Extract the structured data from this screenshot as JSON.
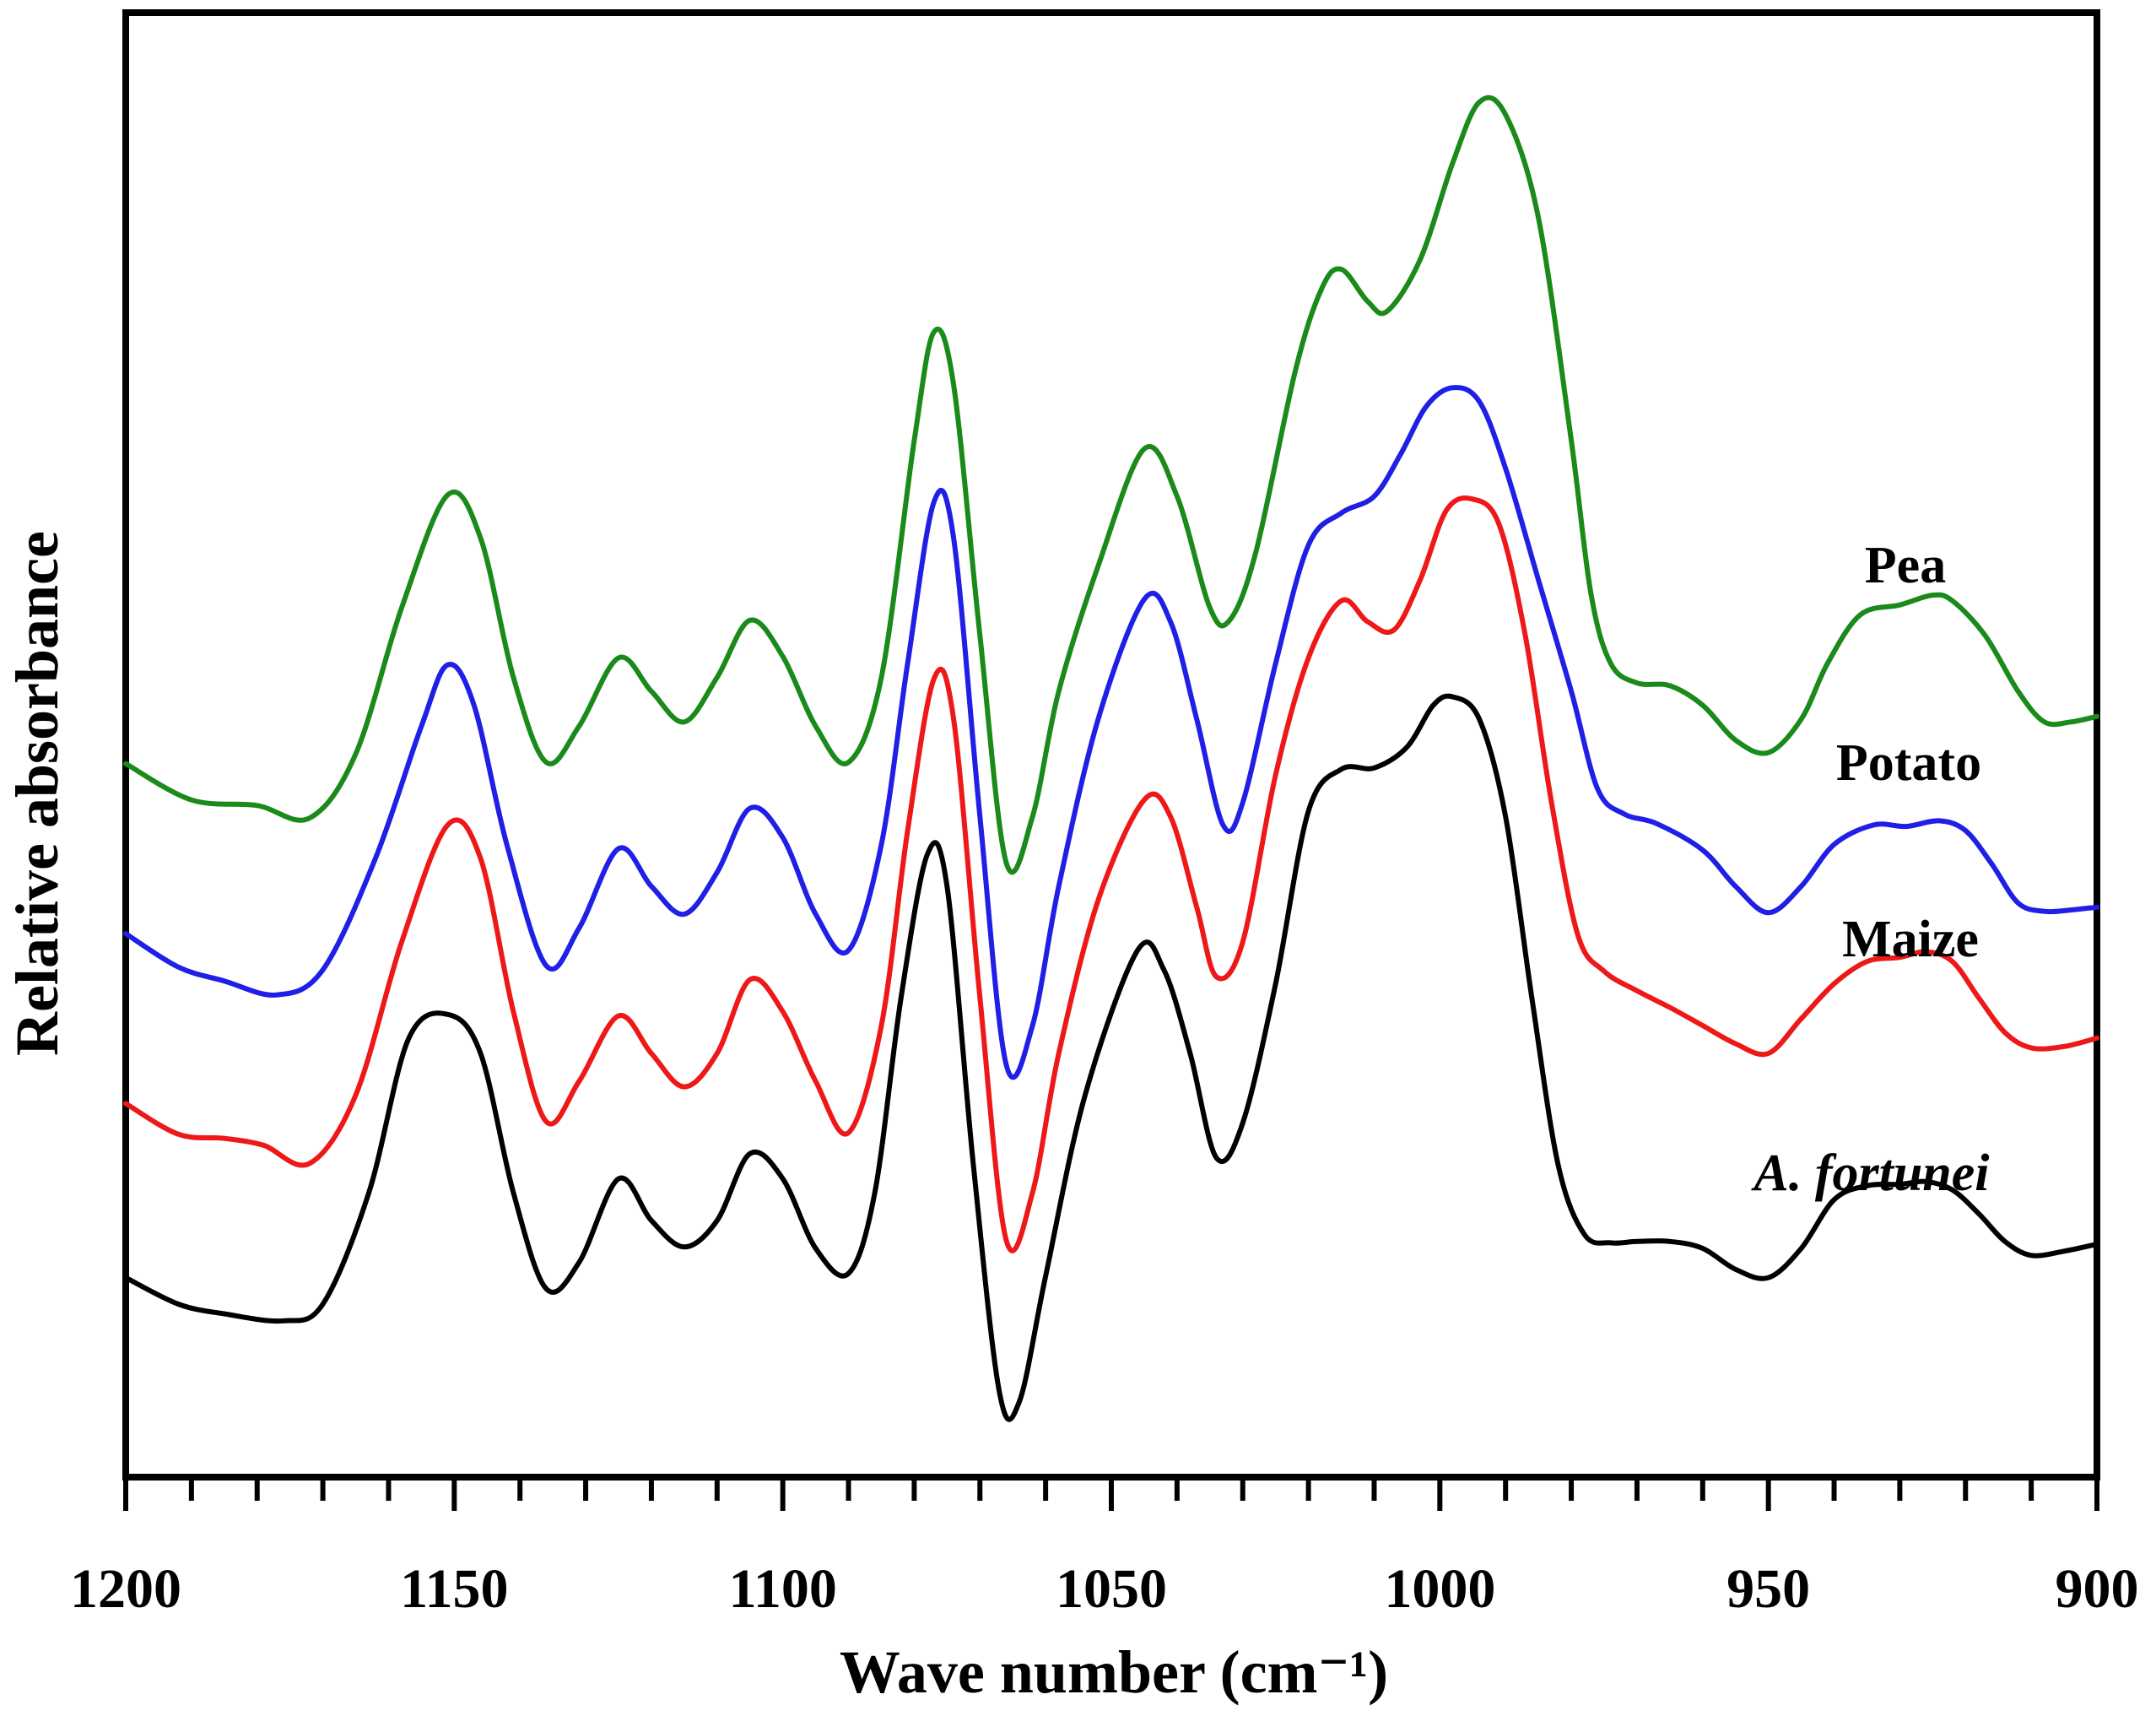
{
  "chart_data": {
    "type": "line",
    "title": "",
    "xlabel": "Wave number (cm⁻¹)",
    "ylabel": "Relative absorbance",
    "xlim": [
      1200,
      900
    ],
    "x_reversed": true,
    "ylim": [
      0,
      100
    ],
    "y_ticks_shown": false,
    "x_ticks": [
      1200,
      1150,
      1100,
      1050,
      1000,
      950,
      900
    ],
    "x_tick_labels": [
      "1200",
      "1150",
      "1100",
      "1050",
      "1000",
      "950",
      "900"
    ],
    "x_minor_step": 10,
    "grid": false,
    "series": [
      {
        "name": "Pea",
        "color": "#1a8a1a",
        "points": [
          [
            1200,
            48.8
          ],
          [
            1190,
            46.2
          ],
          [
            1180,
            45.8
          ],
          [
            1172,
            44.9
          ],
          [
            1165,
            49.5
          ],
          [
            1158,
            60
          ],
          [
            1151,
            68.1
          ],
          [
            1146,
            65
          ],
          [
            1141,
            55
          ],
          [
            1136,
            48.9
          ],
          [
            1131,
            51.5
          ],
          [
            1125,
            56.4
          ],
          [
            1120,
            54
          ],
          [
            1115,
            51.8
          ],
          [
            1110,
            55
          ],
          [
            1105,
            59.1
          ],
          [
            1100,
            56.5
          ],
          [
            1095,
            51.5
          ],
          [
            1090,
            48.9
          ],
          [
            1085,
            55
          ],
          [
            1080,
            72
          ],
          [
            1077,
            79.8
          ],
          [
            1074,
            76
          ],
          [
            1070,
            58
          ],
          [
            1066,
            41.7
          ],
          [
            1062,
            45
          ],
          [
            1058,
            54
          ],
          [
            1052,
            63
          ],
          [
            1045,
            71.4
          ],
          [
            1040,
            68
          ],
          [
            1035,
            60
          ],
          [
            1032,
            59.1
          ],
          [
            1028,
            64
          ],
          [
            1022,
            77
          ],
          [
            1018,
            82.9
          ],
          [
            1015,
            84.3
          ],
          [
            1011,
            82
          ],
          [
            1008,
            81.3
          ],
          [
            1003,
            85
          ],
          [
            998,
            92
          ],
          [
            994,
            96.3
          ],
          [
            990,
            95.4
          ],
          [
            985,
            88
          ],
          [
            980,
            72
          ],
          [
            977,
            61
          ],
          [
            974,
            56
          ],
          [
            970,
            54.6
          ],
          [
            965,
            54.4
          ],
          [
            960,
            53
          ],
          [
            955,
            50.5
          ],
          [
            950,
            49.6
          ],
          [
            945,
            52
          ],
          [
            941,
            56
          ],
          [
            936,
            59.5
          ],
          [
            930,
            60.2
          ],
          [
            925,
            60.9
          ],
          [
            922,
            60.5
          ],
          [
            917,
            58
          ],
          [
            912,
            54
          ],
          [
            908,
            51.8
          ],
          [
            904,
            51.8
          ],
          [
            900,
            52.2
          ]
        ]
      },
      {
        "name": "Potato",
        "color": "#1f1fe6",
        "points": [
          [
            1200,
            36.6
          ],
          [
            1192,
            34.2
          ],
          [
            1185,
            33.2
          ],
          [
            1177,
            32.2
          ],
          [
            1170,
            34
          ],
          [
            1162,
            42
          ],
          [
            1155,
            51.5
          ],
          [
            1151,
            55.9
          ],
          [
            1147,
            53
          ],
          [
            1142,
            43
          ],
          [
            1136,
            34.3
          ],
          [
            1131,
            37
          ],
          [
            1125,
            42.7
          ],
          [
            1120,
            40
          ],
          [
            1115,
            38
          ],
          [
            1110,
            41
          ],
          [
            1105,
            45.6
          ],
          [
            1100,
            43.5
          ],
          [
            1095,
            38
          ],
          [
            1090,
            35.4
          ],
          [
            1085,
            43
          ],
          [
            1081,
            56
          ],
          [
            1077,
            67.6
          ],
          [
            1074,
            65
          ],
          [
            1070,
            45
          ],
          [
            1066,
            27.2
          ],
          [
            1062,
            30
          ],
          [
            1058,
            40
          ],
          [
            1052,
            52
          ],
          [
            1045,
            60.6
          ],
          [
            1041,
            59
          ],
          [
            1037,
            52
          ],
          [
            1033,
            44.4
          ],
          [
            1030,
            46
          ],
          [
            1025,
            56
          ],
          [
            1020,
            64.5
          ],
          [
            1015,
            66.8
          ],
          [
            1010,
            68
          ],
          [
            1006,
            71
          ],
          [
            1002,
            74.5
          ],
          [
            998,
            75.8
          ],
          [
            994,
            74.8
          ],
          [
            990,
            70
          ],
          [
            985,
            62
          ],
          [
            980,
            54
          ],
          [
            976,
            47
          ],
          [
            972,
            45.2
          ],
          [
            967,
            44.5
          ],
          [
            960,
            42.6
          ],
          [
            955,
            40
          ],
          [
            950,
            38.1
          ],
          [
            945,
            40
          ],
          [
            940,
            43
          ],
          [
            934,
            44.4
          ],
          [
            929,
            44.3
          ],
          [
            924,
            44.7
          ],
          [
            920,
            44
          ],
          [
            916,
            41.6
          ],
          [
            912,
            38.8
          ],
          [
            908,
            38.2
          ],
          [
            904,
            38.3
          ],
          [
            900,
            38.5
          ]
        ]
      },
      {
        "name": "Maize",
        "color": "#ee1818",
        "points": [
          [
            1200,
            24.4
          ],
          [
            1192,
            22.2
          ],
          [
            1185,
            21.9
          ],
          [
            1179,
            21.4
          ],
          [
            1172,
            20.1
          ],
          [
            1165,
            25
          ],
          [
            1158,
            36
          ],
          [
            1151,
            44.4
          ],
          [
            1146,
            42
          ],
          [
            1141,
            31
          ],
          [
            1136,
            23.1
          ],
          [
            1131,
            26
          ],
          [
            1125,
            30.7
          ],
          [
            1120,
            28
          ],
          [
            1115,
            25.6
          ],
          [
            1110,
            28
          ],
          [
            1105,
            33.3
          ],
          [
            1100,
            31
          ],
          [
            1095,
            26
          ],
          [
            1090,
            22.3
          ],
          [
            1085,
            30
          ],
          [
            1081,
            44
          ],
          [
            1077,
            54.9
          ],
          [
            1074,
            52
          ],
          [
            1070,
            32
          ],
          [
            1066,
            14.6
          ],
          [
            1062,
            18
          ],
          [
            1058,
            28
          ],
          [
            1052,
            39
          ],
          [
            1045,
            46.2
          ],
          [
            1041,
            45
          ],
          [
            1037,
            38.5
          ],
          [
            1034,
            33.5
          ],
          [
            1030,
            36
          ],
          [
            1025,
            48
          ],
          [
            1020,
            56.4
          ],
          [
            1015,
            60.5
          ],
          [
            1011,
            59
          ],
          [
            1007,
            58.4
          ],
          [
            1003,
            62
          ],
          [
            999,
            67
          ],
          [
            995,
            67.8
          ],
          [
            991,
            66
          ],
          [
            987,
            58
          ],
          [
            983,
            46
          ],
          [
            979,
            36.5
          ],
          [
            975,
            33.9
          ],
          [
            970,
            32.5
          ],
          [
            965,
            31.3
          ],
          [
            960,
            30
          ],
          [
            955,
            28.7
          ],
          [
            950,
            28
          ],
          [
            945,
            30.5
          ],
          [
            940,
            33
          ],
          [
            935,
            34.6
          ],
          [
            930,
            34.9
          ],
          [
            926,
            35.3
          ],
          [
            922,
            34.6
          ],
          [
            918,
            32
          ],
          [
            914,
            29.5
          ],
          [
            910,
            28.4
          ],
          [
            905,
            28.5
          ],
          [
            900,
            29.1
          ]
        ]
      },
      {
        "name": "A. fortunei",
        "color": "#000000",
        "points": [
          [
            1200,
            11.9
          ],
          [
            1192,
            10
          ],
          [
            1185,
            9.3
          ],
          [
            1176,
            8.8
          ],
          [
            1170,
            10
          ],
          [
            1163,
            18
          ],
          [
            1157,
            29
          ],
          [
            1151,
            30.8
          ],
          [
            1146,
            28
          ],
          [
            1141,
            18
          ],
          [
            1136,
            11.1
          ],
          [
            1131,
            13
          ],
          [
            1125,
            19
          ],
          [
            1120,
            16
          ],
          [
            1115,
            14.1
          ],
          [
            1110,
            16
          ],
          [
            1105,
            20.8
          ],
          [
            1100,
            19
          ],
          [
            1095,
            14
          ],
          [
            1090,
            12.2
          ],
          [
            1086,
            18
          ],
          [
            1082,
            32
          ],
          [
            1078,
            42.3
          ],
          [
            1075,
            40
          ],
          [
            1071,
            20
          ],
          [
            1067,
            3.6
          ],
          [
            1064,
            3
          ],
          [
            1060,
            12
          ],
          [
            1054,
            25
          ],
          [
            1046,
            35.4
          ],
          [
            1042,
            34
          ],
          [
            1038,
            28
          ],
          [
            1034,
            20.5
          ],
          [
            1030,
            23
          ],
          [
            1025,
            33
          ],
          [
            1020,
            45.4
          ],
          [
            1015,
            48.4
          ],
          [
            1010,
            48.5
          ],
          [
            1005,
            50
          ],
          [
            1001,
            53
          ],
          [
            998,
            53.6
          ],
          [
            994,
            52
          ],
          [
            990,
            45
          ],
          [
            986,
            32
          ],
          [
            982,
            20
          ],
          [
            978,
            15
          ],
          [
            974,
            14.4
          ],
          [
            970,
            14.5
          ],
          [
            965,
            14.5
          ],
          [
            960,
            14
          ],
          [
            955,
            12.5
          ],
          [
            950,
            11.9
          ],
          [
            945,
            14
          ],
          [
            940,
            17.5
          ],
          [
            935,
            18.5
          ],
          [
            930,
            18.6
          ],
          [
            926,
            18.8
          ],
          [
            922,
            18.2
          ],
          [
            918,
            16.5
          ],
          [
            914,
            14.5
          ],
          [
            910,
            13.5
          ],
          [
            905,
            13.8
          ],
          [
            900,
            14.3
          ]
        ]
      }
    ],
    "annotations": [
      {
        "text": "Pea",
        "italic": false
      },
      {
        "text": "Potato",
        "italic": false
      },
      {
        "text": "Maize",
        "italic": false
      },
      {
        "text": "A. fortunei",
        "italic": true
      }
    ]
  }
}
